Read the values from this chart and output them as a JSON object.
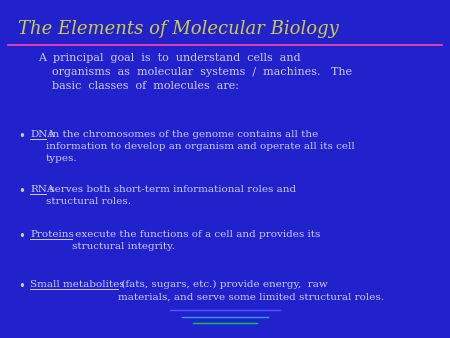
{
  "bg_color": "#2222CC",
  "title": "The Elements of Molecular Biology",
  "title_color": "#CCCC44",
  "title_fontsize": 13,
  "separator_color": "#FF44AA",
  "intro_text": "A  principal  goal  is  to  understand  cells  and\n    organisms  as  molecular  systems  /  machines.   The\n    basic  classes  of  molecules  are:",
  "intro_color": "#CCCCFF",
  "intro_fontsize": 8.0,
  "bullet_color": "#CCCCFF",
  "bullet_fontsize": 7.5,
  "underline_color": "#CCCCFF",
  "bullets": [
    {
      "keyword": "DNA",
      "rest": " in the chromosomes of the genome contains all the\ninformation to develop an organism and operate all its cell\ntypes."
    },
    {
      "keyword": "RNA",
      "rest": " serves both short-term informational roles and\nstructural roles."
    },
    {
      "keyword": "Proteins",
      "rest": " execute the functions of a cell and provides its\nstructural integrity."
    },
    {
      "keyword": "Small metabolites",
      "rest": " (fats, sugars, etc.) provide energy,  raw\nmaterials, and serve some limited structural roles."
    }
  ],
  "footer_line1_color": "#5555FF",
  "footer_line2_color": "#3399FF",
  "footer_line3_color": "#00CC44"
}
